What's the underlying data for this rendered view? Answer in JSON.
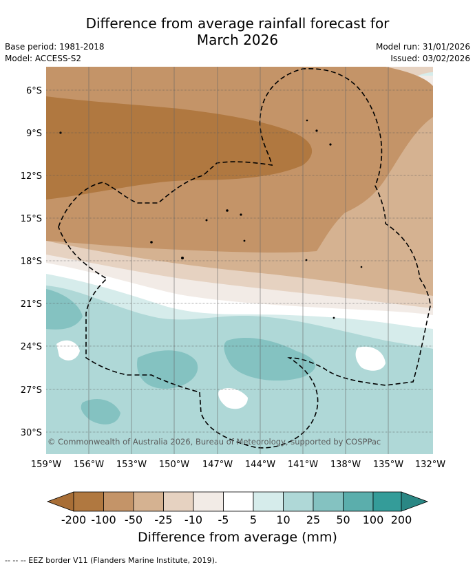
{
  "title": {
    "line1": "Difference from average rainfall forecast for",
    "line2": "March 2026"
  },
  "meta": {
    "base_period": "Base period: 1981-2018",
    "model": "Model: ACCESS-S2",
    "model_run": "Model run: 31/01/2026",
    "issued": "Issued: 03/02/2026"
  },
  "map": {
    "lat_labels": [
      "6°S",
      "9°S",
      "12°S",
      "15°S",
      "18°S",
      "21°S",
      "24°S",
      "27°S",
      "30°S"
    ],
    "lon_labels": [
      "159°W",
      "156°W",
      "153°W",
      "150°W",
      "147°W",
      "144°W",
      "141°W",
      "138°W",
      "135°W",
      "132°W"
    ],
    "copyright": "© Commonwealth of Australia 2026, Bureau of Meteorology, supported by COSPPac"
  },
  "colorbar": {
    "ticks": [
      "-200",
      "-100",
      "-50",
      "-25",
      "-10",
      "-5",
      "5",
      "10",
      "25",
      "50",
      "100",
      "200"
    ],
    "colors": {
      "below_min": "#a86e36",
      "b1": "#b07840",
      "b2": "#c49468",
      "b3": "#d5b291",
      "b4": "#e6d2c1",
      "b5": "#f2ebe6",
      "b6": "#ffffff",
      "b7": "#d6eceb",
      "b8": "#afd8d7",
      "b9": "#84c2c1",
      "b10": "#5baeac",
      "b11": "#349c99",
      "above_max": "#2a8784"
    },
    "title": "Difference from average (mm)"
  },
  "footer": {
    "eez_note": "--  --  -- EEZ border V11 (Flanders Marine Institute, 2019)."
  }
}
